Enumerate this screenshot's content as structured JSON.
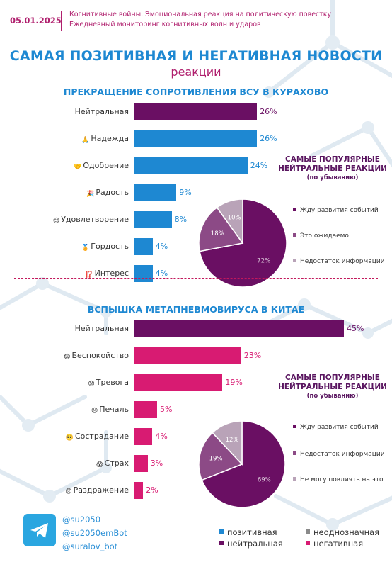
{
  "header": {
    "date": "05.01.2025",
    "line1": "Когнитивные войны. Эмоциональная реакция на политическую повестку",
    "line2": "Ежедневный мониторинг когнитивных волн и ударов"
  },
  "title": "САМАЯ ПОЗИТИВНАЯ И НЕГАТИВНАЯ НОВОСТИ",
  "subtitle": "реакции",
  "colors": {
    "positive": "#1e88d2",
    "neutral": "#6a0f63",
    "negative": "#d81b72",
    "ambiguous": "#8a8a8a",
    "pie_main": "#6a0f63",
    "pie_mid": "#8c4a86",
    "pie_small": "#b9a3b8"
  },
  "chart_data": [
    {
      "type": "bar",
      "title": "ПРЕКРАЩЕНИЕ СОПРОТИВЛЕНИЯ ВСУ В КУРАХОВО",
      "categories": [
        "Нейтральная",
        "Надежда",
        "Одобрение",
        "Радость",
        "Удовлетворение",
        "Гордость",
        "Интерес"
      ],
      "values": [
        26,
        26,
        24,
        9,
        8,
        4,
        4
      ],
      "labels": [
        "26%",
        "26%",
        "24%",
        "9%",
        "8%",
        "4%",
        "4%"
      ],
      "kinds": [
        "neutral",
        "positive",
        "positive",
        "positive",
        "positive",
        "positive",
        "positive"
      ],
      "emoji": [
        "",
        "🙏",
        "🤝",
        "🎉",
        "😊",
        "🏅",
        "⁉️"
      ]
    },
    {
      "type": "pie",
      "title": "САМЫЕ ПОПУЛЯРНЫЕ НЕЙТРАЛЬНЫЕ РЕАКЦИИ",
      "subtitle": "(по убыванию)",
      "categories": [
        "Жду развития событий",
        "Это ожидаемо",
        "Недостаток информации"
      ],
      "values": [
        72,
        18,
        10
      ],
      "labels": [
        "72%",
        "18%",
        "10%"
      ]
    },
    {
      "type": "bar",
      "title": "ВСПЫШКА МЕТАПНЕВМОВИРУСА В КИТАЕ",
      "categories": [
        "Нейтральная",
        "Беспокойство",
        "Тревога",
        "Печаль",
        "Сострадание",
        "Страх",
        "Раздражение"
      ],
      "values": [
        45,
        23,
        19,
        5,
        4,
        3,
        2
      ],
      "labels": [
        "45%",
        "23%",
        "19%",
        "5%",
        "4%",
        "3%",
        "2%"
      ],
      "kinds": [
        "neutral",
        "negative",
        "negative",
        "negative",
        "negative",
        "negative",
        "negative"
      ],
      "emoji": [
        "",
        "😨",
        "😟",
        "😞",
        "🥺",
        "😱",
        "😠"
      ]
    },
    {
      "type": "pie",
      "title": "САМЫЕ ПОПУЛЯРНЫЕ НЕЙТРАЛЬНЫЕ РЕАКЦИИ",
      "subtitle": "(по убыванию)",
      "categories": [
        "Жду развития событий",
        "Недостаток информации",
        "Не могу повлиять на это"
      ],
      "values": [
        69,
        19,
        12
      ],
      "labels": [
        "69%",
        "19%",
        "12%"
      ]
    }
  ],
  "footer": {
    "handles": [
      "@su2050",
      "@su2050emBot",
      "@suralov_bot"
    ],
    "legend": {
      "positive": "позитивная",
      "ambiguous": "неоднозначная",
      "neutral": "нейтральная",
      "negative": "негативная"
    }
  }
}
